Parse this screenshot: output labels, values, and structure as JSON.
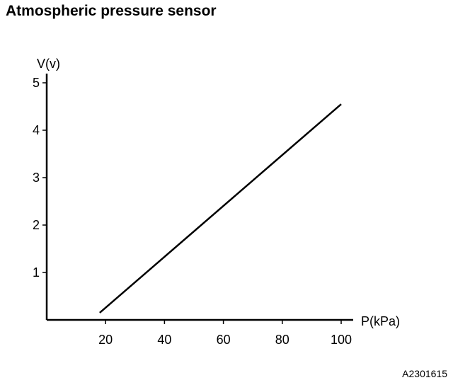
{
  "chart_data": {
    "type": "line",
    "title": "Atmospheric pressure sensor",
    "xlabel": "P(kPa)",
    "ylabel": "V(v)",
    "xlim": [
      0,
      100
    ],
    "ylim": [
      0,
      5
    ],
    "x_ticks": [
      20,
      40,
      60,
      80,
      100
    ],
    "y_ticks": [
      1,
      2,
      3,
      4,
      5
    ],
    "grid": false,
    "series": [
      {
        "x": [
          18,
          100
        ],
        "y": [
          0.15,
          4.55
        ]
      }
    ]
  },
  "figure_code": "A2301615",
  "colors": {
    "ink": "#000000",
    "background": "#ffffff"
  }
}
